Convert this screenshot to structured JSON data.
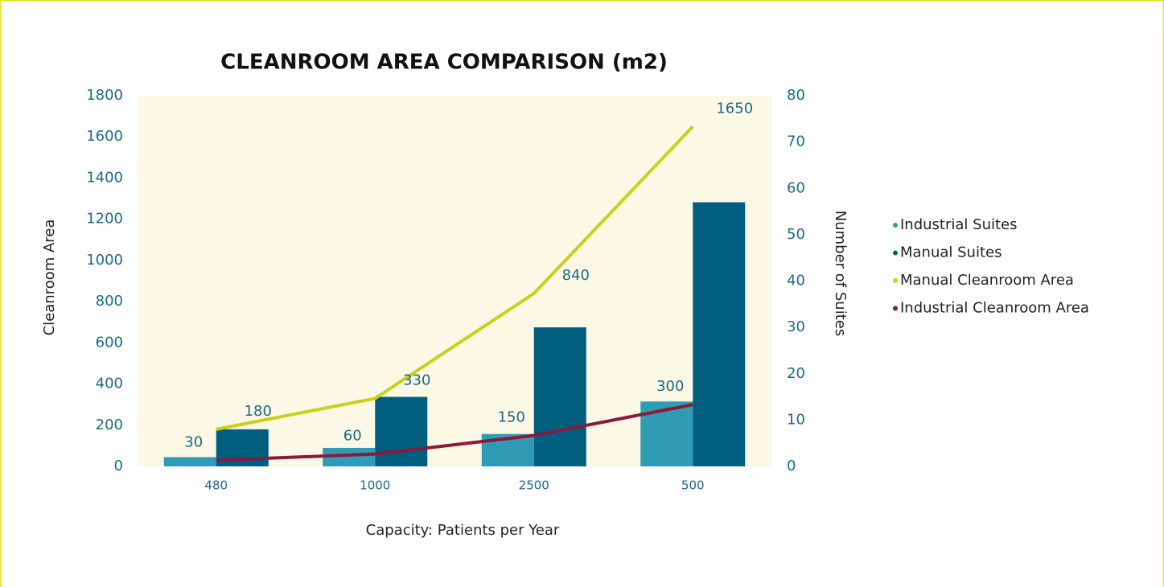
{
  "chart_data": {
    "type": "combo",
    "title": "CLEANROOM AREA COMPARISON (m2)",
    "x_label": "Capacity: Patients per Year",
    "y_label": "Cleanroom Area",
    "y2_label": "Number of Suites",
    "categories": [
      "480",
      "1000",
      "2500",
      "500"
    ],
    "ylim": [
      0,
      1800
    ],
    "yticks": [
      0,
      200,
      400,
      600,
      800,
      1000,
      1200,
      1400,
      1600,
      1800
    ],
    "y2lim": [
      0,
      80
    ],
    "y2ticks": [
      0,
      10,
      20,
      30,
      40,
      50,
      60,
      70,
      80
    ],
    "legend": "right",
    "series": [
      {
        "name": "Industrial Suites",
        "type": "bar",
        "axis": "y2",
        "color": "#2f9bb5",
        "values": [
          2,
          4,
          7,
          14
        ]
      },
      {
        "name": "Manual Suites",
        "type": "bar",
        "axis": "y2",
        "color": "#005f7f",
        "values": [
          8,
          15,
          30,
          57
        ]
      },
      {
        "name": "Manual Cleanroom Area",
        "type": "line",
        "axis": "y",
        "color": "#c8d219",
        "values": [
          180,
          330,
          840,
          1650
        ]
      },
      {
        "name": "Industrial Cleanroom Area",
        "type": "line",
        "axis": "y",
        "color": "#8b1a3a",
        "values": [
          30,
          60,
          150,
          300
        ]
      }
    ]
  }
}
